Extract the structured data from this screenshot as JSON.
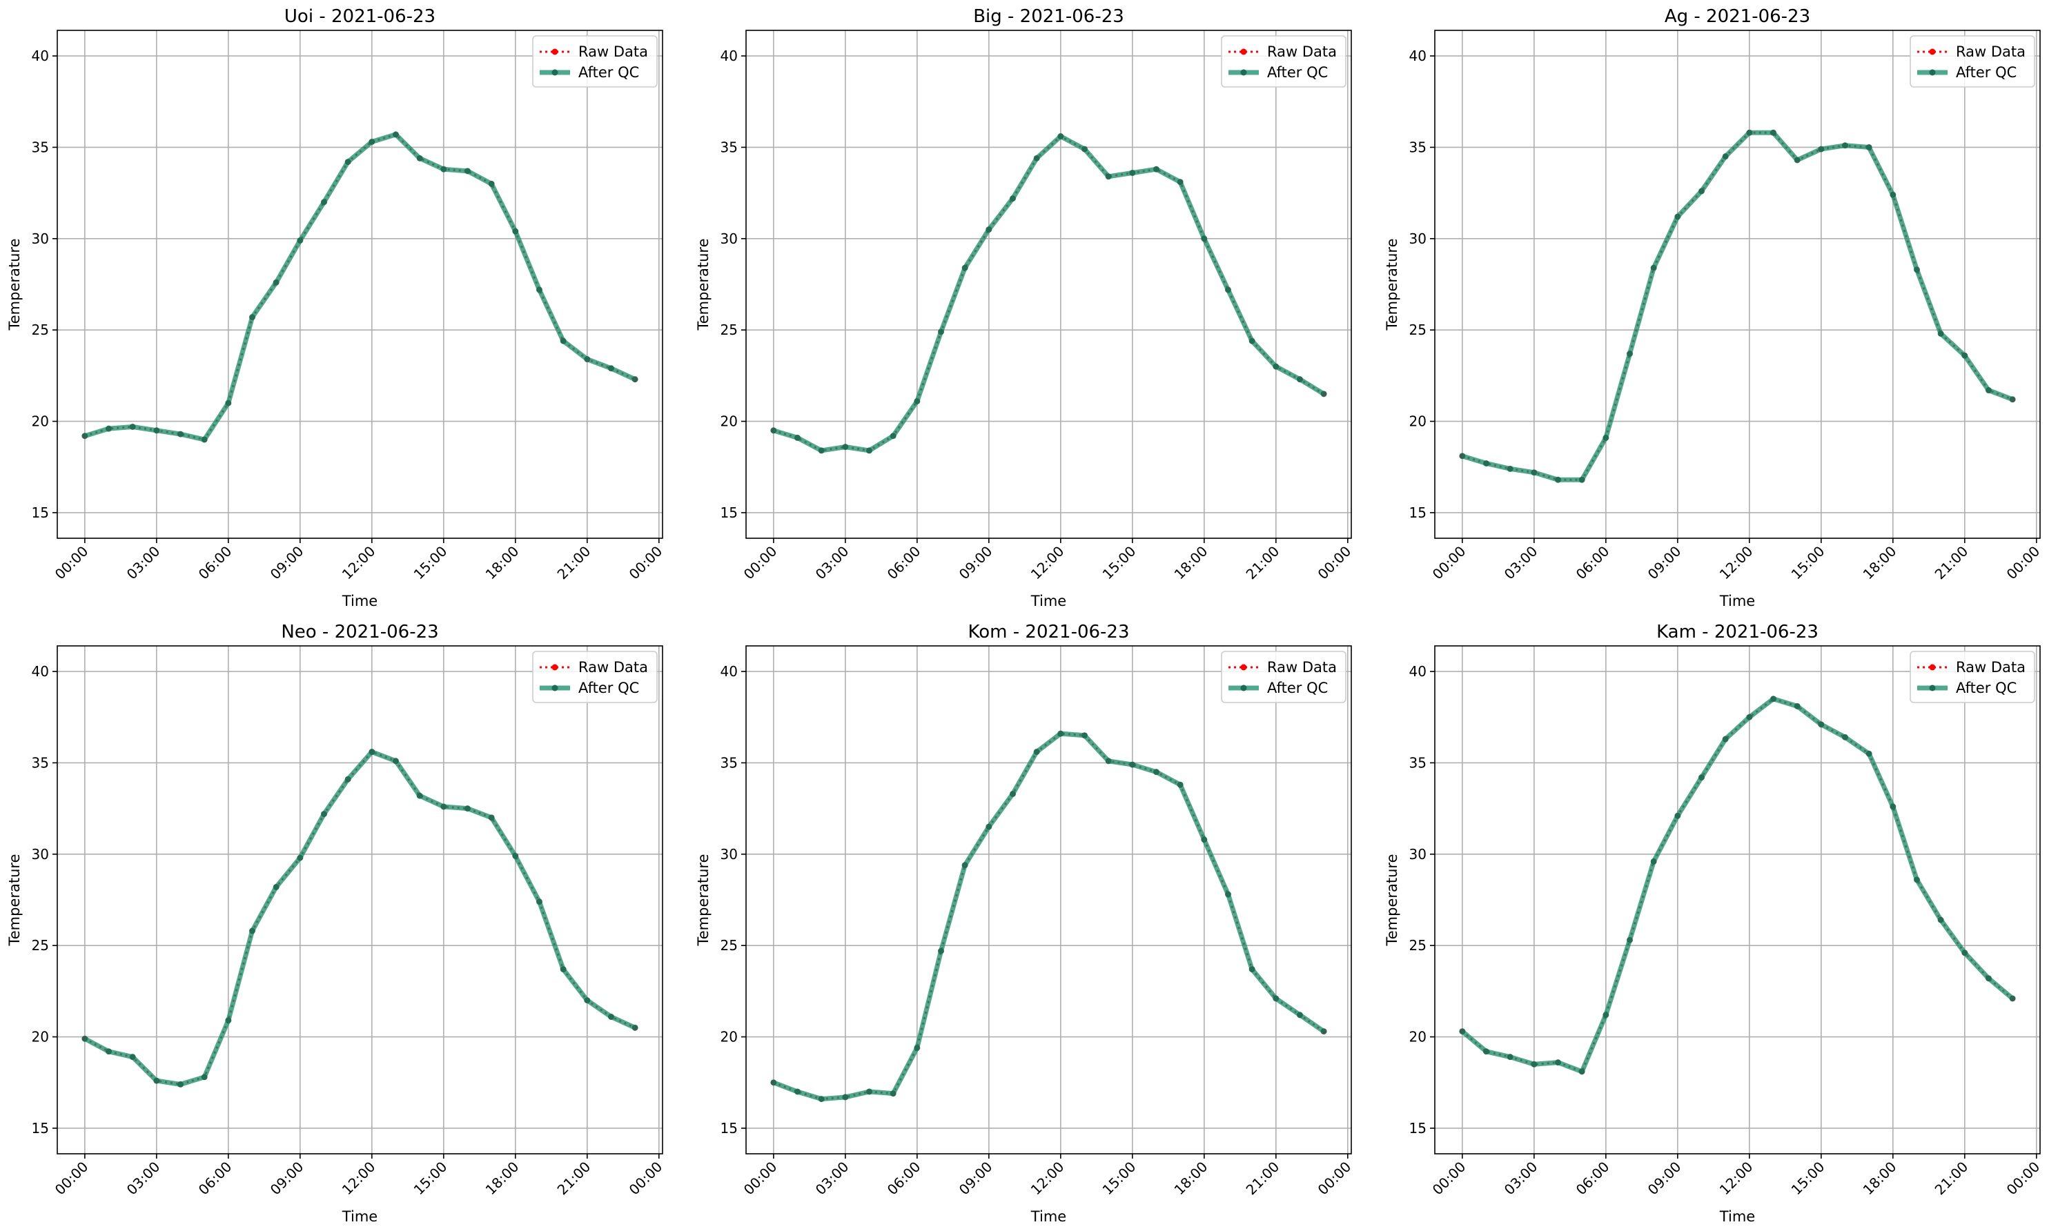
{
  "chart_data": [
    {
      "type": "line",
      "title": "Uoi - 2021-06-23",
      "xlabel": "Time",
      "ylabel": "Temperature",
      "ylim": [
        13.6,
        41.4
      ],
      "yticks": [
        15,
        20,
        25,
        30,
        35,
        40
      ],
      "xticks": [
        "00:00",
        "03:00",
        "06:00",
        "09:00",
        "12:00",
        "15:00",
        "18:00",
        "21:00",
        "00:00"
      ],
      "grid": true,
      "legend_position": "upper-right",
      "x_hours": [
        0,
        1,
        2,
        3,
        4,
        5,
        6,
        7,
        8,
        9,
        10,
        11,
        12,
        13,
        14,
        15,
        16,
        17,
        18,
        19,
        20,
        21,
        22,
        23
      ],
      "series": [
        {
          "name": "Raw Data",
          "color": "#ff0000",
          "style": "dotted",
          "values": [
            19.2,
            19.6,
            19.7,
            19.5,
            19.3,
            19.0,
            21.0,
            25.7,
            27.6,
            29.9,
            32.0,
            34.2,
            35.3,
            35.7,
            34.4,
            33.8,
            33.7,
            33.0,
            30.4,
            27.2,
            24.4,
            23.4,
            22.9,
            22.3
          ]
        },
        {
          "name": "After QC",
          "color": "#1f8f6e",
          "style": "solid",
          "values": [
            19.2,
            19.6,
            19.7,
            19.5,
            19.3,
            19.0,
            21.0,
            25.7,
            27.6,
            29.9,
            32.0,
            34.2,
            35.3,
            35.7,
            34.4,
            33.8,
            33.7,
            33.0,
            30.4,
            27.2,
            24.4,
            23.4,
            22.9,
            22.3
          ]
        }
      ]
    },
    {
      "type": "line",
      "title": "Big - 2021-06-23",
      "xlabel": "Time",
      "ylabel": "Temperature",
      "ylim": [
        13.6,
        41.4
      ],
      "yticks": [
        15,
        20,
        25,
        30,
        35,
        40
      ],
      "xticks": [
        "00:00",
        "03:00",
        "06:00",
        "09:00",
        "12:00",
        "15:00",
        "18:00",
        "21:00",
        "00:00"
      ],
      "grid": true,
      "legend_position": "upper-right",
      "x_hours": [
        0,
        1,
        2,
        3,
        4,
        5,
        6,
        7,
        8,
        9,
        10,
        11,
        12,
        13,
        14,
        15,
        16,
        17,
        18,
        19,
        20,
        21,
        22,
        23
      ],
      "series": [
        {
          "name": "Raw Data",
          "color": "#ff0000",
          "style": "dotted",
          "values": [
            19.5,
            19.1,
            18.4,
            18.6,
            18.4,
            19.2,
            21.1,
            24.9,
            28.4,
            30.5,
            32.2,
            34.4,
            35.6,
            34.9,
            33.4,
            33.6,
            33.8,
            33.1,
            30.0,
            27.2,
            24.4,
            23.0,
            22.3,
            21.5
          ]
        },
        {
          "name": "After QC",
          "color": "#1f8f6e",
          "style": "solid",
          "values": [
            19.5,
            19.1,
            18.4,
            18.6,
            18.4,
            19.2,
            21.1,
            24.9,
            28.4,
            30.5,
            32.2,
            34.4,
            35.6,
            34.9,
            33.4,
            33.6,
            33.8,
            33.1,
            30.0,
            27.2,
            24.4,
            23.0,
            22.3,
            21.5
          ]
        }
      ]
    },
    {
      "type": "line",
      "title": "Ag - 2021-06-23",
      "xlabel": "Time",
      "ylabel": "Temperature",
      "ylim": [
        13.6,
        41.4
      ],
      "yticks": [
        15,
        20,
        25,
        30,
        35,
        40
      ],
      "xticks": [
        "00:00",
        "03:00",
        "06:00",
        "09:00",
        "12:00",
        "15:00",
        "18:00",
        "21:00",
        "00:00"
      ],
      "grid": true,
      "legend_position": "upper-right",
      "x_hours": [
        0,
        1,
        2,
        3,
        4,
        5,
        6,
        7,
        8,
        9,
        10,
        11,
        12,
        13,
        14,
        15,
        16,
        17,
        18,
        19,
        20,
        21,
        22,
        23
      ],
      "series": [
        {
          "name": "Raw Data",
          "color": "#ff0000",
          "style": "dotted",
          "values": [
            18.1,
            17.7,
            17.4,
            17.2,
            16.8,
            16.8,
            19.1,
            23.7,
            28.4,
            31.2,
            32.6,
            34.5,
            35.8,
            35.8,
            34.3,
            34.9,
            35.1,
            35.0,
            32.4,
            28.3,
            24.8,
            23.6,
            21.7,
            21.2
          ]
        },
        {
          "name": "After QC",
          "color": "#1f8f6e",
          "style": "solid",
          "values": [
            18.1,
            17.7,
            17.4,
            17.2,
            16.8,
            16.8,
            19.1,
            23.7,
            28.4,
            31.2,
            32.6,
            34.5,
            35.8,
            35.8,
            34.3,
            34.9,
            35.1,
            35.0,
            32.4,
            28.3,
            24.8,
            23.6,
            21.7,
            21.2
          ]
        }
      ]
    },
    {
      "type": "line",
      "title": "Neo - 2021-06-23",
      "xlabel": "Time",
      "ylabel": "Temperature",
      "ylim": [
        13.6,
        41.4
      ],
      "yticks": [
        15,
        20,
        25,
        30,
        35,
        40
      ],
      "xticks": [
        "00:00",
        "03:00",
        "06:00",
        "09:00",
        "12:00",
        "15:00",
        "18:00",
        "21:00",
        "00:00"
      ],
      "grid": true,
      "legend_position": "upper-right",
      "x_hours": [
        0,
        1,
        2,
        3,
        4,
        5,
        6,
        7,
        8,
        9,
        10,
        11,
        12,
        13,
        14,
        15,
        16,
        17,
        18,
        19,
        20,
        21,
        22,
        23
      ],
      "series": [
        {
          "name": "Raw Data",
          "color": "#ff0000",
          "style": "dotted",
          "values": [
            19.9,
            19.2,
            18.9,
            17.6,
            17.4,
            17.8,
            20.9,
            25.8,
            28.2,
            29.8,
            32.2,
            34.1,
            35.6,
            35.1,
            33.2,
            32.6,
            32.5,
            32.0,
            29.9,
            27.4,
            23.7,
            22.0,
            21.1,
            20.5
          ]
        },
        {
          "name": "After QC",
          "color": "#1f8f6e",
          "style": "solid",
          "values": [
            19.9,
            19.2,
            18.9,
            17.6,
            17.4,
            17.8,
            20.9,
            25.8,
            28.2,
            29.8,
            32.2,
            34.1,
            35.6,
            35.1,
            33.2,
            32.6,
            32.5,
            32.0,
            29.9,
            27.4,
            23.7,
            22.0,
            21.1,
            20.5
          ]
        }
      ]
    },
    {
      "type": "line",
      "title": "Kom - 2021-06-23",
      "xlabel": "Time",
      "ylabel": "Temperature",
      "ylim": [
        13.6,
        41.4
      ],
      "yticks": [
        15,
        20,
        25,
        30,
        35,
        40
      ],
      "xticks": [
        "00:00",
        "03:00",
        "06:00",
        "09:00",
        "12:00",
        "15:00",
        "18:00",
        "21:00",
        "00:00"
      ],
      "grid": true,
      "legend_position": "upper-right",
      "x_hours": [
        0,
        1,
        2,
        3,
        4,
        5,
        6,
        7,
        8,
        9,
        10,
        11,
        12,
        13,
        14,
        15,
        16,
        17,
        18,
        19,
        20,
        21,
        22,
        23
      ],
      "series": [
        {
          "name": "Raw Data",
          "color": "#ff0000",
          "style": "dotted",
          "values": [
            17.5,
            17.0,
            16.6,
            16.7,
            17.0,
            16.9,
            19.4,
            24.7,
            29.4,
            31.5,
            33.3,
            35.6,
            36.6,
            36.5,
            35.1,
            34.9,
            34.5,
            33.8,
            30.8,
            27.8,
            23.7,
            22.1,
            21.2,
            20.3
          ]
        },
        {
          "name": "After QC",
          "color": "#1f8f6e",
          "style": "solid",
          "values": [
            17.5,
            17.0,
            16.6,
            16.7,
            17.0,
            16.9,
            19.4,
            24.7,
            29.4,
            31.5,
            33.3,
            35.6,
            36.6,
            36.5,
            35.1,
            34.9,
            34.5,
            33.8,
            30.8,
            27.8,
            23.7,
            22.1,
            21.2,
            20.3
          ]
        }
      ]
    },
    {
      "type": "line",
      "title": "Kam - 2021-06-23",
      "xlabel": "Time",
      "ylabel": "Temperature",
      "ylim": [
        13.6,
        41.4
      ],
      "yticks": [
        15,
        20,
        25,
        30,
        35,
        40
      ],
      "xticks": [
        "00:00",
        "03:00",
        "06:00",
        "09:00",
        "12:00",
        "15:00",
        "18:00",
        "21:00",
        "00:00"
      ],
      "grid": true,
      "legend_position": "upper-right",
      "x_hours": [
        0,
        1,
        2,
        3,
        4,
        5,
        6,
        7,
        8,
        9,
        10,
        11,
        12,
        13,
        14,
        15,
        16,
        17,
        18,
        19,
        20,
        21,
        22,
        23
      ],
      "series": [
        {
          "name": "Raw Data",
          "color": "#ff0000",
          "style": "dotted",
          "values": [
            20.3,
            19.2,
            18.9,
            18.5,
            18.6,
            18.1,
            21.2,
            25.3,
            29.6,
            32.1,
            34.2,
            36.3,
            37.5,
            38.5,
            38.1,
            37.1,
            36.4,
            35.5,
            32.6,
            28.6,
            26.4,
            24.6,
            23.2,
            22.1
          ]
        },
        {
          "name": "After QC",
          "color": "#1f8f6e",
          "style": "solid",
          "values": [
            20.3,
            19.2,
            18.9,
            18.5,
            18.6,
            18.1,
            21.2,
            25.3,
            29.6,
            32.1,
            34.2,
            36.3,
            37.5,
            38.5,
            38.1,
            37.1,
            36.4,
            35.5,
            32.6,
            28.6,
            26.4,
            24.6,
            23.2,
            22.1
          ]
        }
      ]
    }
  ]
}
